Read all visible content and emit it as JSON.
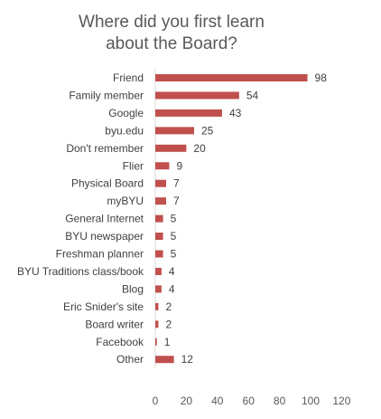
{
  "chart_data": {
    "type": "bar",
    "orientation": "horizontal",
    "title_lines": [
      "Where did you first learn",
      "about the Board?"
    ],
    "categories": [
      "Friend",
      "Family member",
      "Google",
      "byu.edu",
      "Don't remember",
      "Flier",
      "Physical Board",
      "myBYU",
      "General Internet",
      "BYU newspaper",
      "Freshman planner",
      "BYU Traditions class/book",
      "Blog",
      "Eric Snider's site",
      "Board writer",
      "Facebook",
      "Other"
    ],
    "values": [
      98,
      54,
      43,
      25,
      20,
      9,
      7,
      7,
      5,
      5,
      5,
      4,
      4,
      2,
      2,
      1,
      12
    ],
    "xlim": [
      0,
      120
    ],
    "x_ticks": [
      0,
      20,
      40,
      60,
      80,
      100,
      120
    ],
    "bar_color": "#c0504d",
    "grid": false,
    "legend": "none",
    "xlabel": "",
    "ylabel": ""
  }
}
